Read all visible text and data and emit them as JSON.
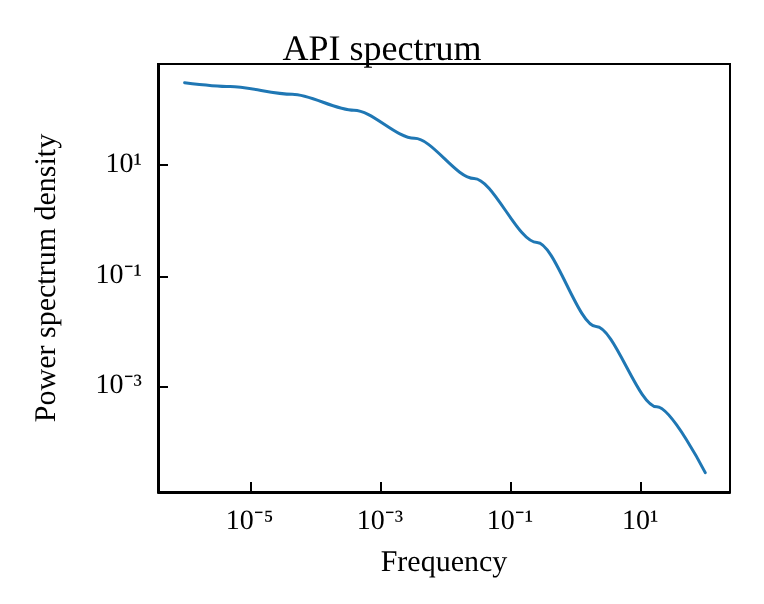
{
  "chart_data": {
    "type": "line",
    "title": "API spectrum",
    "xlabel": "Frequency",
    "ylabel": "Power spectrum density",
    "log": "xy",
    "grid": false,
    "marker": "none",
    "line_style": "solid",
    "x": [
      1e-06,
      5e-06,
      4.5e-05,
      0.0004,
      0.0034,
      0.028,
      0.26,
      2.1,
      18,
      100
    ],
    "series": [
      {
        "color": "#1f77b4",
        "values": [
          316,
          269,
          195,
          100,
          31,
          5.8,
          0.4,
          0.012,
          0.00042,
          2.7e-05
        ]
      }
    ],
    "xlim": [
      3.9e-07,
      240
    ],
    "ylim": [
      1.2e-05,
      690
    ],
    "xticks": [
      {
        "value": 1e-05,
        "label": "10⁻⁵"
      },
      {
        "value": 0.001,
        "label": "10⁻³"
      },
      {
        "value": 0.1,
        "label": "10⁻¹"
      },
      {
        "value": 10,
        "label": "10¹"
      }
    ],
    "yticks": [
      {
        "value": 0.001,
        "label": "10⁻³"
      },
      {
        "value": 0.1,
        "label": "10⁻¹"
      },
      {
        "value": 10,
        "label": "10¹"
      }
    ]
  }
}
